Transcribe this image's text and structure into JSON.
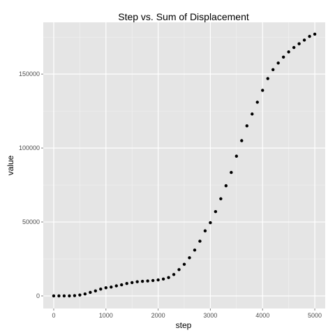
{
  "chart_data": {
    "type": "scatter",
    "title": "Step vs. Sum of Displacement",
    "xlabel": "step",
    "ylabel": "value",
    "xlim": [
      -200,
      5200
    ],
    "ylim": [
      -8500,
      185000
    ],
    "x_ticks": [
      0,
      1000,
      2000,
      3000,
      4000,
      5000
    ],
    "x_tick_labels": [
      "0",
      "1000",
      "2000",
      "3000",
      "4000",
      "5000"
    ],
    "y_ticks": [
      0,
      50000,
      100000,
      150000
    ],
    "y_tick_labels": [
      "0",
      "50000",
      "100000",
      "150000"
    ],
    "grid": true,
    "point_color": "#000000",
    "panel_background": "#e5e5e5",
    "grid_color": "#ffffff",
    "x": [
      0,
      100,
      200,
      300,
      400,
      500,
      600,
      700,
      800,
      900,
      1000,
      1100,
      1200,
      1300,
      1400,
      1500,
      1600,
      1700,
      1800,
      1900,
      2000,
      2100,
      2200,
      2300,
      2400,
      2500,
      2600,
      2700,
      2800,
      2900,
      3000,
      3100,
      3200,
      3300,
      3400,
      3500,
      3600,
      3700,
      3800,
      3900,
      4000,
      4100,
      4200,
      4300,
      4400,
      4500,
      4600,
      4700,
      4800,
      4900,
      5000
    ],
    "y": [
      0,
      0,
      0,
      0,
      200,
      600,
      1300,
      2400,
      3400,
      4600,
      5500,
      6000,
      6800,
      7500,
      8400,
      9000,
      9600,
      9900,
      10100,
      10400,
      10800,
      11400,
      12400,
      14500,
      17800,
      21400,
      25800,
      31000,
      37000,
      44000,
      49500,
      57000,
      65700,
      74500,
      83500,
      94500,
      105000,
      115000,
      123000,
      131000,
      139000,
      147000,
      153000,
      157500,
      161500,
      165000,
      168000,
      170500,
      173000,
      175500,
      177000
    ]
  }
}
